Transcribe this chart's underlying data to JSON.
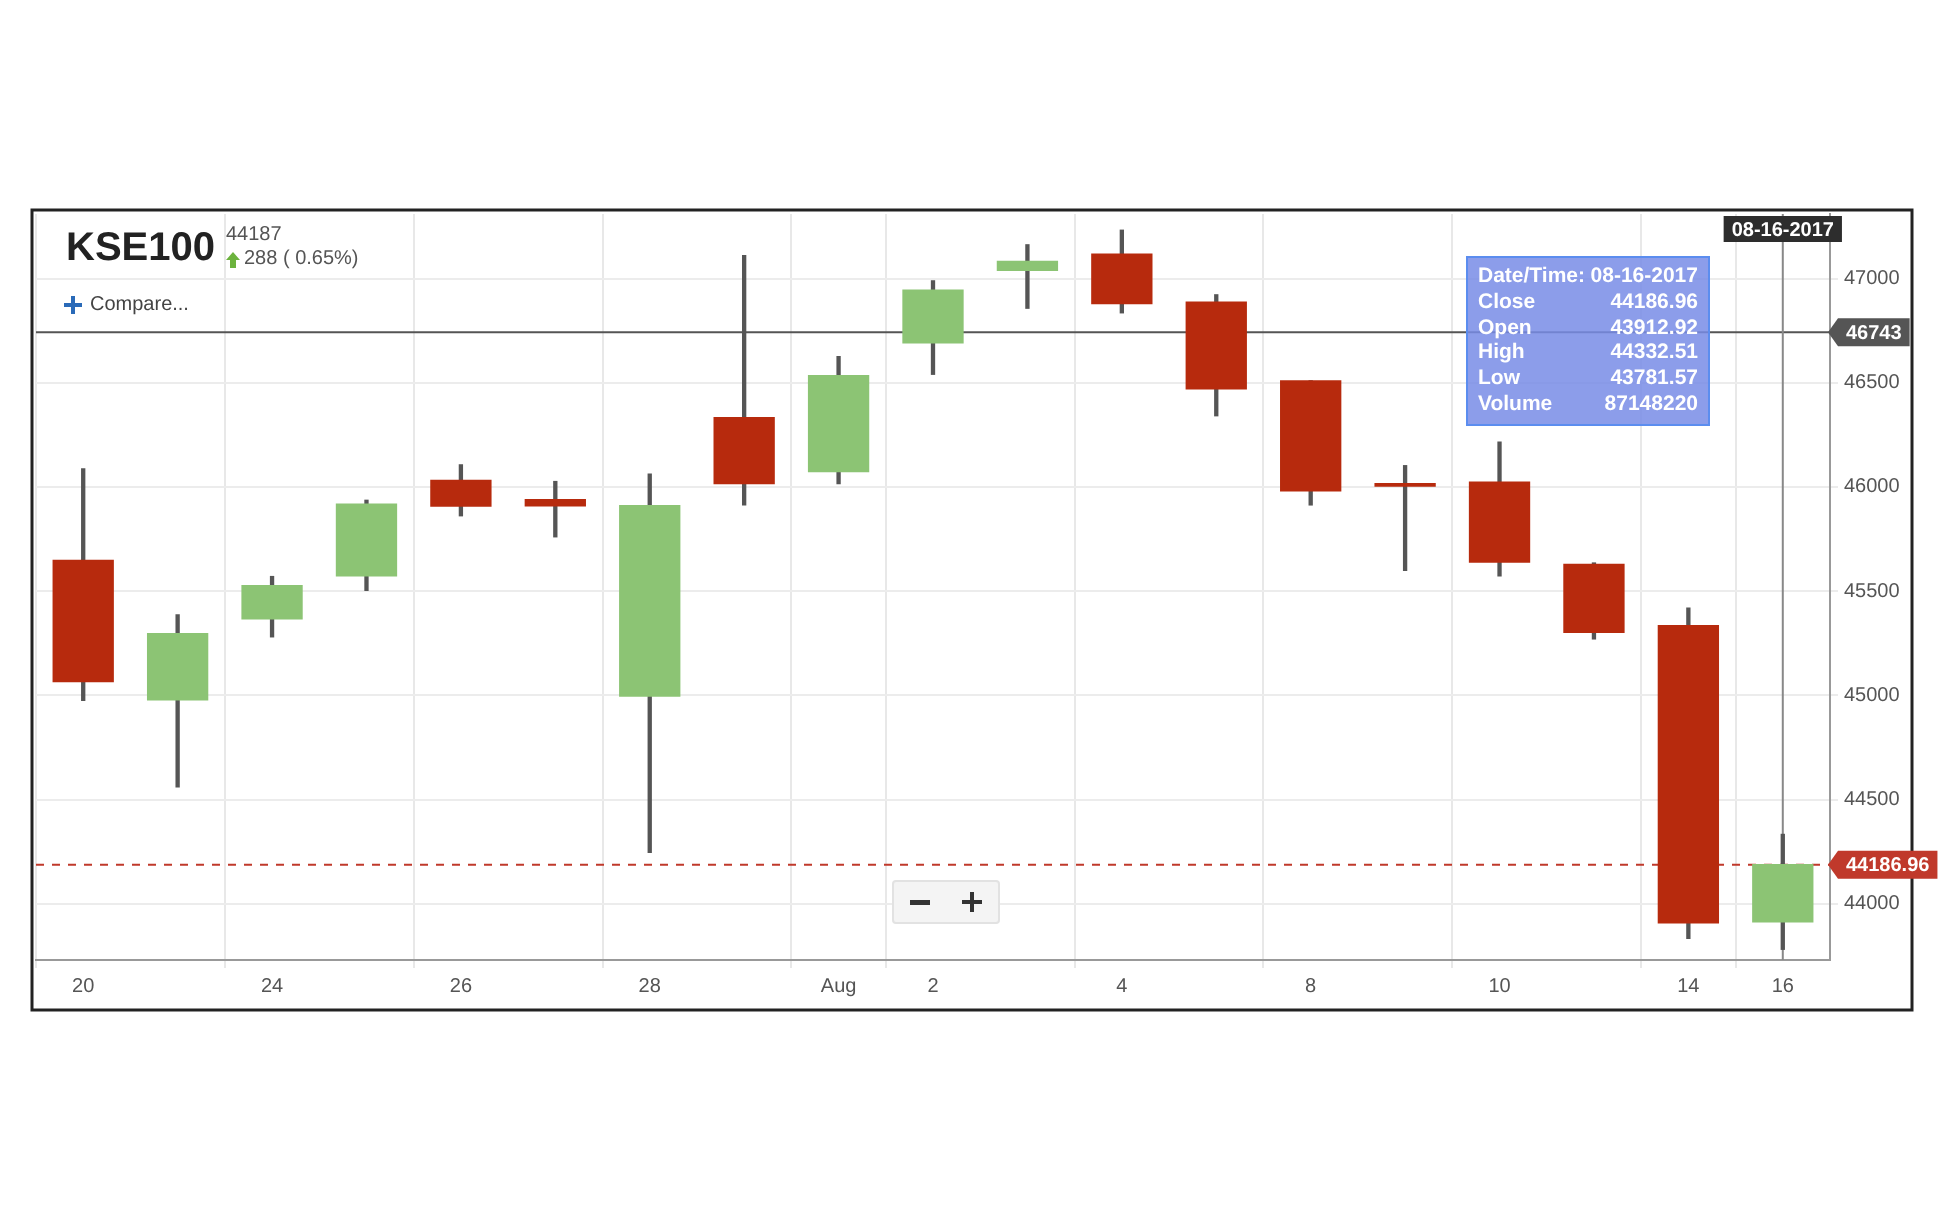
{
  "chart_data": {
    "type": "candlestick",
    "title": "KSE100",
    "subtitle": "44187",
    "categories": [
      "20",
      null,
      "24",
      null,
      "26",
      null,
      "28",
      null,
      "Aug",
      "2",
      null,
      "4",
      null,
      "8",
      null,
      "10",
      null,
      "14",
      "16"
    ],
    "ohlc": [
      [
        45648,
        46087,
        44976,
        45066
      ],
      [
        44979,
        45386,
        44561,
        45296
      ],
      [
        45367,
        45570,
        45281,
        45526
      ],
      [
        45574,
        45936,
        45504,
        45917
      ],
      [
        46032,
        46106,
        45862,
        45908
      ],
      [
        45939,
        46026,
        45761,
        45910
      ],
      [
        44996,
        46061,
        44247,
        45910
      ],
      [
        46333,
        47110,
        45914,
        46016
      ],
      [
        46074,
        46625,
        46016,
        46534
      ],
      [
        46692,
        46989,
        46541,
        46944
      ],
      [
        47040,
        47162,
        46858,
        47082
      ],
      [
        47117,
        47232,
        46836,
        46880
      ],
      [
        46887,
        46922,
        46342,
        46471
      ],
      [
        46509,
        46509,
        45914,
        45981
      ],
      [
        46016,
        46102,
        45600,
        46004
      ],
      [
        46023,
        46215,
        45574,
        45639
      ],
      [
        45629,
        45635,
        45271,
        45303
      ],
      [
        45334,
        45418,
        43834,
        43908
      ],
      [
        43912.92,
        44332.51,
        43781.57,
        44186.96
      ]
    ],
    "colors": [
      "#b72a0d",
      "#8cc474",
      "#8cc474",
      "#8cc474",
      "#b72a0d",
      "#b72a0d",
      "#8cc474",
      "#b72a0d",
      "#8cc474",
      "#8cc474",
      "#8cc474",
      "#b72a0d",
      "#b72a0d",
      "#b72a0d",
      "#b72a0d",
      "#b72a0d",
      "#b72a0d",
      "#b72a0d",
      "#8cc474"
    ],
    "ylim": [
      43730,
      47310
    ],
    "yticks": [
      44000,
      44500,
      45000,
      45500,
      46000,
      46500,
      47000
    ],
    "grid": true,
    "legend": false,
    "ref_lines": [
      {
        "axis": "y",
        "value": 46743,
        "label": "46743",
        "color": "#555555",
        "line_style": "solid"
      },
      {
        "axis": "y",
        "value": 44186.96,
        "label": "44186.96",
        "color": "#c0392b",
        "line_style": "dashed"
      },
      {
        "axis": "x",
        "value": "16",
        "label": "08-16-2017",
        "color": "#888888",
        "line_style": "solid"
      }
    ],
    "annotations": [
      "288 ( 0.65%)",
      "Compare...",
      "Date/Time: 08-16-2017",
      "Close 44186.96",
      "Open 43912.92",
      "High 44332.51",
      "Low 43781.57",
      "Volume 87148220"
    ]
  }
}
